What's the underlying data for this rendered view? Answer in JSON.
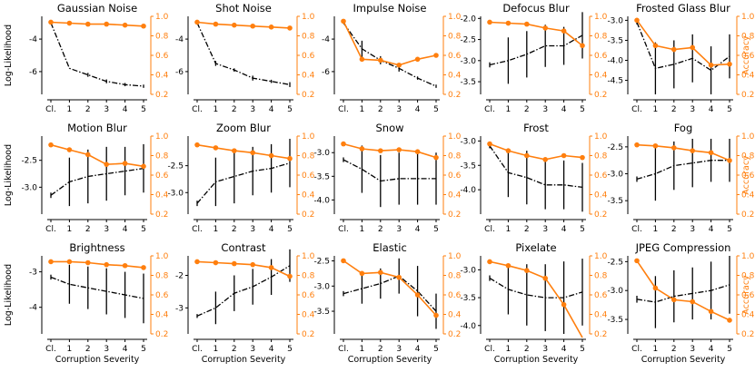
{
  "figure": {
    "ylabel_left": "Log-Likelihood",
    "ylabel_right": "Accuracy",
    "xlabel": "Corruption Severity",
    "colors": {
      "loglik": "#000000",
      "accuracy": "#ff7f0e"
    }
  },
  "chart_data": [
    {
      "type": "line",
      "title": "Gaussian Noise",
      "categories": [
        "Cl.",
        "1",
        "2",
        "3",
        "4",
        "5"
      ],
      "ylim_left": [
        -7.4,
        -2.6
      ],
      "yticks_left": [
        "-4",
        "-6"
      ],
      "yticks_left_vals": [
        -4,
        -6
      ],
      "ylim_right": [
        0.2,
        1.0
      ],
      "yticks_right": [
        "0.2",
        "0.4",
        "0.6",
        "0.8",
        "1.0"
      ],
      "series": [
        {
          "values": [
            -3.0,
            -5.8,
            -6.2,
            -6.6,
            -6.8,
            -6.9
          ],
          "err": [
            0,
            0,
            0.12,
            0.12,
            0.1,
            0.1
          ]
        },
        {
          "values": [
            0.94,
            0.93,
            0.92,
            0.92,
            0.91,
            0.9
          ]
        }
      ]
    },
    {
      "type": "line",
      "title": "Shot Noise",
      "categories": [
        "Cl.",
        "1",
        "2",
        "3",
        "4",
        "5"
      ],
      "ylim_left": [
        -7.4,
        -2.6
      ],
      "yticks_left": [
        "-4",
        "-6"
      ],
      "yticks_left_vals": [
        -4,
        -6
      ],
      "ylim_right": [
        0.2,
        1.0
      ],
      "yticks_right": [
        "0.2",
        "0.4",
        "0.6",
        "0.8",
        "1.0"
      ],
      "series": [
        {
          "values": [
            -3.0,
            -5.5,
            -5.9,
            -6.4,
            -6.6,
            -6.8
          ],
          "err": [
            0,
            0.15,
            0.1,
            0.15,
            0.1,
            0.15
          ]
        },
        {
          "values": [
            0.94,
            0.92,
            0.91,
            0.9,
            0.89,
            0.88
          ]
        }
      ]
    },
    {
      "type": "line",
      "title": "Impulse Noise",
      "categories": [
        "Cl.",
        "1",
        "2",
        "3",
        "4",
        "5"
      ],
      "ylim_left": [
        -7.4,
        -2.6
      ],
      "yticks_left": [
        "-4",
        "-6"
      ],
      "yticks_left_vals": [
        -4,
        -6
      ],
      "ylim_right": [
        0.2,
        1.0
      ],
      "yticks_right": [
        "0.2",
        "0.4",
        "0.6",
        "0.8",
        "1.0"
      ],
      "series": [
        {
          "values": [
            -3.0,
            -4.6,
            -5.3,
            -5.8,
            -6.4,
            -6.9
          ],
          "err": [
            0,
            0.5,
            0.25,
            0.2,
            0.1,
            0.1
          ]
        },
        {
          "values": [
            0.95,
            0.56,
            0.55,
            0.5,
            0.56,
            0.6
          ]
        }
      ]
    },
    {
      "type": "line",
      "title": "Defocus Blur",
      "categories": [
        "Cl.",
        "1",
        "2",
        "3",
        "4",
        "5"
      ],
      "ylim_left": [
        -3.8,
        -1.95
      ],
      "yticks_left": [
        "-2.0",
        "-2.5",
        "-3.0",
        "-3.5"
      ],
      "yticks_left_vals": [
        -2.0,
        -2.5,
        -3.0,
        -3.5
      ],
      "ylim_right": [
        0.2,
        1.0
      ],
      "yticks_right": [
        "0.2",
        "0.4",
        "0.6",
        "0.8",
        "1.0"
      ],
      "series": [
        {
          "values": [
            -3.1,
            -3.0,
            -2.85,
            -2.65,
            -2.65,
            -2.4
          ],
          "err": [
            0.06,
            0.55,
            0.55,
            0.5,
            0.45,
            0.55
          ]
        },
        {
          "values": [
            0.94,
            0.93,
            0.92,
            0.88,
            0.85,
            0.7
          ]
        }
      ]
    },
    {
      "type": "line",
      "title": "Frosted Glass Blur",
      "categories": [
        "Cl.",
        "1",
        "2",
        "3",
        "4",
        "5"
      ],
      "ylim_left": [
        -4.85,
        -2.9
      ],
      "yticks_left": [
        "-3.0",
        "-3.5",
        "-4.0",
        "-4.5"
      ],
      "yticks_left_vals": [
        -3.0,
        -3.5,
        -4.0,
        -4.5
      ],
      "ylim_right": [
        0.2,
        1.0
      ],
      "yticks_right": [
        "0.2",
        "0.4",
        "0.6",
        "0.8",
        "1.0"
      ],
      "series": [
        {
          "values": [
            -3.05,
            -4.2,
            -4.1,
            -3.95,
            -4.25,
            -3.9
          ],
          "err": [
            0.05,
            0.65,
            0.6,
            0.6,
            0.6,
            0.55
          ]
        },
        {
          "values": [
            0.96,
            0.7,
            0.66,
            0.68,
            0.5,
            0.51
          ]
        }
      ]
    },
    {
      "type": "line",
      "title": "Motion Blur",
      "categories": [
        "Cl.",
        "1",
        "2",
        "3",
        "4",
        "5"
      ],
      "ylim_left": [
        -3.5,
        -2.05
      ],
      "yticks_left": [
        "-2.5",
        "-3.0"
      ],
      "yticks_left_vals": [
        -2.5,
        -3.0
      ],
      "ylim_right": [
        0.2,
        1.0
      ],
      "yticks_right": [
        "0.2",
        "0.4",
        "0.6",
        "0.8",
        "1.0"
      ],
      "series": [
        {
          "values": [
            -3.15,
            -2.9,
            -2.8,
            -2.75,
            -2.7,
            -2.65
          ],
          "err": [
            0.05,
            0.45,
            0.5,
            0.5,
            0.45,
            0.45
          ]
        },
        {
          "values": [
            0.91,
            0.86,
            0.81,
            0.71,
            0.72,
            0.69
          ]
        }
      ]
    },
    {
      "type": "line",
      "title": "Zoom Blur",
      "categories": [
        "Cl.",
        "1",
        "2",
        "3",
        "4",
        "5"
      ],
      "ylim_left": [
        -3.4,
        -1.95
      ],
      "yticks_left": [
        "-2.5",
        "-3.0"
      ],
      "yticks_left_vals": [
        -2.5,
        -3.0
      ],
      "ylim_right": [
        0.2,
        1.0
      ],
      "yticks_right": [
        "0.2",
        "0.4",
        "0.6",
        "0.8",
        "1.0"
      ],
      "series": [
        {
          "values": [
            -3.2,
            -2.8,
            -2.7,
            -2.6,
            -2.55,
            -2.45
          ],
          "err": [
            0.05,
            0.45,
            0.5,
            0.45,
            0.45,
            0.45
          ]
        },
        {
          "values": [
            0.91,
            0.88,
            0.85,
            0.83,
            0.8,
            0.77
          ]
        }
      ]
    },
    {
      "type": "line",
      "title": "Snow",
      "categories": [
        "Cl.",
        "1",
        "2",
        "3",
        "4",
        "5"
      ],
      "ylim_left": [
        -4.3,
        -2.65
      ],
      "yticks_left": [
        "-3.0",
        "-3.5",
        "-4.0"
      ],
      "yticks_left_vals": [
        -3.0,
        -3.5,
        -4.0
      ],
      "ylim_right": [
        0.2,
        1.0
      ],
      "yticks_right": [
        "0.2",
        "0.4",
        "0.6",
        "0.8",
        "1.0"
      ],
      "series": [
        {
          "values": [
            -3.15,
            -3.35,
            -3.6,
            -3.55,
            -3.55,
            -3.55
          ],
          "err": [
            0.05,
            0.5,
            0.55,
            0.55,
            0.55,
            0.55
          ]
        },
        {
          "values": [
            0.92,
            0.87,
            0.85,
            0.86,
            0.84,
            0.78
          ]
        }
      ]
    },
    {
      "type": "line",
      "title": "Frost",
      "categories": [
        "Cl.",
        "1",
        "2",
        "3",
        "4",
        "5"
      ],
      "ylim_left": [
        -4.5,
        -2.9
      ],
      "yticks_left": [
        "-3.0",
        "-3.5",
        "-4.0"
      ],
      "yticks_left_vals": [
        -3.0,
        -3.5,
        -4.0
      ],
      "ylim_right": [
        0.2,
        1.0
      ],
      "yticks_right": [
        "0.2",
        "0.4",
        "0.6",
        "0.8",
        "1.0"
      ],
      "series": [
        {
          "values": [
            -3.1,
            -3.65,
            -3.75,
            -3.9,
            -3.9,
            -3.95
          ],
          "err": [
            0.05,
            0.5,
            0.55,
            0.5,
            0.5,
            0.5
          ]
        },
        {
          "values": [
            0.92,
            0.85,
            0.8,
            0.76,
            0.8,
            0.78
          ]
        }
      ]
    },
    {
      "type": "line",
      "title": "Fog",
      "categories": [
        "Cl.",
        "1",
        "2",
        "3",
        "4",
        "5"
      ],
      "ylim_left": [
        -3.75,
        -2.3
      ],
      "yticks_left": [
        "-2.5",
        "-3.0",
        "-3.5"
      ],
      "yticks_left_vals": [
        -2.5,
        -3.0,
        -3.5
      ],
      "ylim_right": [
        0.2,
        1.0
      ],
      "yticks_right": [
        "0.2",
        "0.4",
        "0.6",
        "0.8",
        "1.0"
      ],
      "series": [
        {
          "values": [
            -3.1,
            -3.0,
            -2.85,
            -2.8,
            -2.75,
            -2.75
          ],
          "err": [
            0.05,
            0.5,
            0.45,
            0.45,
            0.4,
            0.4
          ]
        },
        {
          "values": [
            0.91,
            0.9,
            0.88,
            0.85,
            0.83,
            0.75
          ]
        }
      ]
    },
    {
      "type": "line",
      "title": "Brightness",
      "categories": [
        "Cl.",
        "1",
        "2",
        "3",
        "4",
        "5"
      ],
      "ylim_left": [
        -4.75,
        -2.55
      ],
      "yticks_left": [
        "-3",
        "-4"
      ],
      "yticks_left_vals": [
        -3,
        -4
      ],
      "ylim_right": [
        0.2,
        1.0
      ],
      "yticks_right": [
        "0.2",
        "0.4",
        "0.6",
        "0.8",
        "1.0"
      ],
      "series": [
        {
          "values": [
            -3.15,
            -3.35,
            -3.45,
            -3.55,
            -3.65,
            -3.75
          ],
          "err": [
            0.07,
            0.55,
            0.6,
            0.65,
            0.65,
            0.7
          ]
        },
        {
          "values": [
            0.94,
            0.94,
            0.93,
            0.91,
            0.9,
            0.88
          ]
        }
      ]
    },
    {
      "type": "line",
      "title": "Contrast",
      "categories": [
        "Cl.",
        "1",
        "2",
        "3",
        "4",
        "5"
      ],
      "ylim_left": [
        -3.8,
        -1.4
      ],
      "yticks_left": [
        "-2",
        "-3"
      ],
      "yticks_left_vals": [
        -2,
        -3
      ],
      "ylim_right": [
        0.2,
        1.0
      ],
      "yticks_right": [
        "0.2",
        "0.4",
        "0.6",
        "0.8",
        "1.0"
      ],
      "series": [
        {
          "values": [
            -3.25,
            -3.0,
            -2.55,
            -2.35,
            -2.05,
            -1.7
          ],
          "err": [
            0.06,
            0.5,
            0.55,
            0.55,
            0.55,
            0.5
          ]
        },
        {
          "values": [
            0.94,
            0.93,
            0.92,
            0.91,
            0.88,
            0.79
          ]
        }
      ]
    },
    {
      "type": "line",
      "title": "Elastic",
      "categories": [
        "Cl.",
        "1",
        "2",
        "3",
        "4",
        "5"
      ],
      "ylim_left": [
        -3.95,
        -2.4
      ],
      "yticks_left": [
        "-2.5",
        "-3.0",
        "-3.5"
      ],
      "yticks_left_vals": [
        -2.5,
        -3.0,
        -3.5
      ],
      "ylim_right": [
        0.2,
        1.0
      ],
      "yticks_right": [
        "0.2",
        "0.4",
        "0.6",
        "0.8",
        "1.0"
      ],
      "series": [
        {
          "values": [
            -3.15,
            -3.05,
            -2.95,
            -2.8,
            -3.1,
            -3.5
          ],
          "err": [
            0.05,
            0.3,
            0.3,
            0.35,
            0.5,
            0.35
          ]
        },
        {
          "values": [
            0.95,
            0.82,
            0.83,
            0.78,
            0.6,
            0.39
          ]
        }
      ]
    },
    {
      "type": "line",
      "title": "Pixelate",
      "categories": [
        "Cl.",
        "1",
        "2",
        "3",
        "4",
        "5"
      ],
      "ylim_left": [
        -4.15,
        -2.75
      ],
      "yticks_left": [
        "-3.0",
        "-3.5",
        "-4.0"
      ],
      "yticks_left_vals": [
        -3.0,
        -3.5,
        -4.0
      ],
      "ylim_right": [
        0.2,
        1.0
      ],
      "yticks_right": [
        "0.2",
        "0.4",
        "0.6",
        "0.8",
        "1.0"
      ],
      "series": [
        {
          "values": [
            -3.15,
            -3.35,
            -3.45,
            -3.5,
            -3.5,
            -3.4
          ],
          "err": [
            0.05,
            0.45,
            0.55,
            0.6,
            0.65,
            0.6
          ]
        },
        {
          "values": [
            0.94,
            0.9,
            0.85,
            0.77,
            0.5,
            0.15
          ]
        }
      ]
    },
    {
      "type": "line",
      "title": "JPEG Compression",
      "categories": [
        "Cl.",
        "1",
        "2",
        "3",
        "4",
        "5"
      ],
      "ylim_left": [
        -3.75,
        -2.4
      ],
      "yticks_left": [
        "-2.5",
        "-3.0",
        "-3.5"
      ],
      "yticks_left_vals": [
        -2.5,
        -3.0,
        -3.5
      ],
      "ylim_right": [
        0.2,
        1.0
      ],
      "yticks_right": [
        "0.2",
        "0.4",
        "0.6",
        "0.8",
        "1.0"
      ],
      "series": [
        {
          "values": [
            -3.15,
            -3.2,
            -3.1,
            -3.05,
            -3.0,
            -2.9
          ],
          "err": [
            0.06,
            0.45,
            0.45,
            0.45,
            0.5,
            0.5
          ]
        },
        {
          "values": [
            0.95,
            0.67,
            0.55,
            0.53,
            0.43,
            0.34
          ]
        }
      ]
    }
  ]
}
